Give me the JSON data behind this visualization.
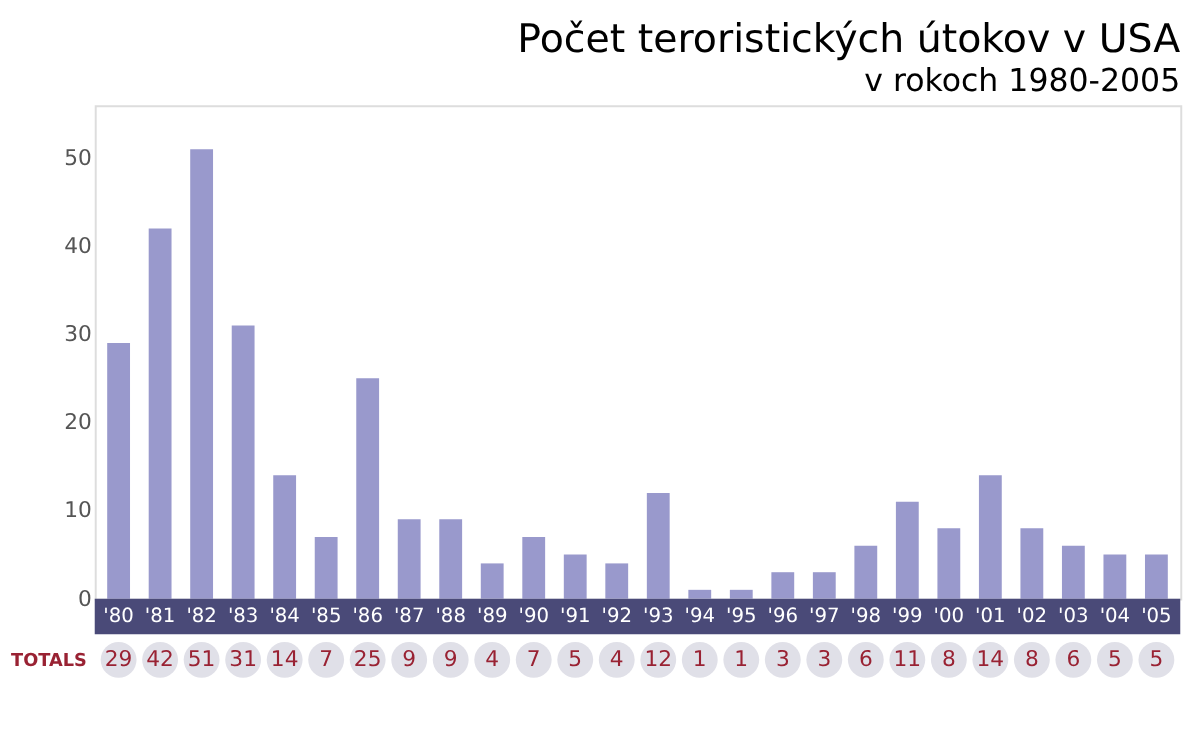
{
  "chart_data": {
    "type": "bar",
    "title": "Počet teroristických útokov v USA",
    "subtitle": "v rokoch 1980-2005",
    "categories": [
      "'80",
      "'81",
      "'82",
      "'83",
      "'84",
      "'85",
      "'86",
      "'87",
      "'88",
      "'89",
      "'90",
      "'91",
      "'92",
      "'93",
      "'94",
      "'95",
      "'96",
      "'97",
      "'98",
      "'99",
      "'00",
      "'01",
      "'02",
      "'03",
      "'04",
      "'05"
    ],
    "values": [
      29,
      42,
      51,
      31,
      14,
      7,
      25,
      9,
      9,
      4,
      7,
      5,
      4,
      12,
      1,
      1,
      3,
      3,
      6,
      11,
      8,
      14,
      8,
      6,
      5,
      5
    ],
    "color": "#9999cc",
    "ylim": [
      0,
      56
    ],
    "yticks": [
      0,
      10,
      20,
      30,
      40,
      50
    ],
    "grid": false,
    "data_labels": true,
    "annotations": [
      "TOTALS"
    ]
  }
}
